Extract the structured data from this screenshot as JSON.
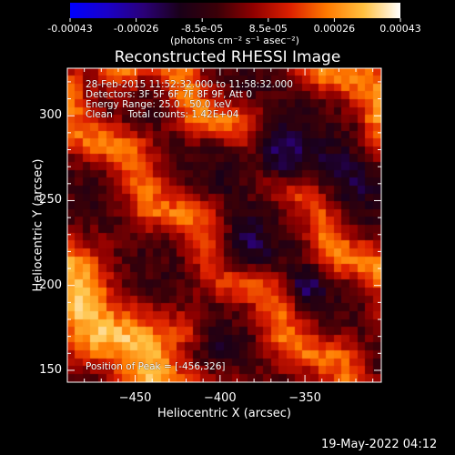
{
  "chart_data": {
    "type": "heatmap",
    "title": "Reconstructed RHESSI Image",
    "xlabel": "Heliocentric X (arcsec)",
    "ylabel": "Heliocentric Y (arcsec)",
    "xlim": [
      -490,
      -305
    ],
    "ylim": [
      143,
      328
    ],
    "xticks": [
      -450,
      -400,
      -350
    ],
    "yticks": [
      150,
      200,
      250,
      300
    ],
    "colorbar": {
      "ticks": [
        "-0.00043",
        "-0.00026",
        "-8.5e-05",
        "8.5e-05",
        "0.00026",
        "0.00043"
      ],
      "range": [
        -0.00043,
        0.00043
      ],
      "unit_label": "(photons cm⁻² s⁻¹ asec⁻²)",
      "stops": [
        "#0000ff",
        "#1a00c8",
        "#2a0078",
        "#1a0018",
        "#3a0008",
        "#900000",
        "#dd2000",
        "#ff7a00",
        "#ffc040",
        "#ffffff"
      ]
    },
    "annotations": [
      "28-Feb-2015 11:52:32.000 to 11:58:32.000",
      "Detectors: 3F 5F 6F 7F 8F 9F, Att 0",
      "Energy Range: 25.0 - 50.0 keV",
      "Clean     Total counts: 1.42E+04",
      "Position of Peak = [-456,326]"
    ],
    "peak_position": [
      -456,
      326
    ],
    "bands": [
      {
        "p": 0.15,
        "w": 0.09,
        "a": 1.1
      },
      {
        "p": 0.44,
        "w": 0.06,
        "a": 0.8
      },
      {
        "p": 0.66,
        "w": 0.06,
        "a": 0.85
      },
      {
        "p": 0.93,
        "w": 0.06,
        "a": 0.9
      }
    ],
    "blobs": [
      {
        "x": -373,
        "y": 272,
        "r": 22,
        "a": -0.85
      },
      {
        "x": -388,
        "y": 218,
        "r": 18,
        "a": -0.5
      },
      {
        "x": -350,
        "y": 200,
        "r": 12,
        "a": -0.55
      },
      {
        "x": -330,
        "y": 258,
        "r": 20,
        "a": -0.4
      },
      {
        "x": -460,
        "y": 325,
        "r": 14,
        "a": 0.7
      },
      {
        "x": -420,
        "y": 175,
        "r": 10,
        "a": 0.35
      },
      {
        "x": -400,
        "y": 160,
        "r": 12,
        "a": -0.2
      }
    ]
  },
  "footer": {
    "timestamp": "19-May-2022 04:12"
  }
}
